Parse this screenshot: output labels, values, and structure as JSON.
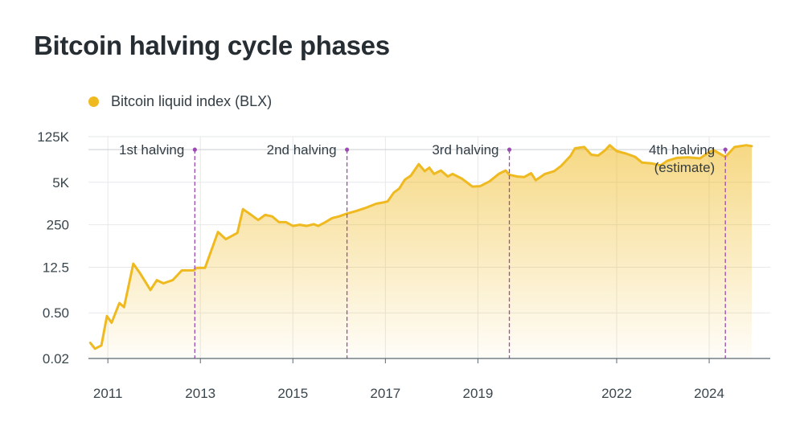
{
  "colors": {
    "series": "#efb920",
    "halving_line": "#9b4ab3",
    "grid": "#e6e8ea",
    "axis": "#5a6770"
  },
  "chart_data": {
    "type": "area",
    "title": "Bitcoin halving cycle phases",
    "legend": {
      "label": "Bitcoin liquid index (BLX)",
      "placement": "top-left"
    },
    "xlabel": "",
    "ylabel": "",
    "y_scale": "log",
    "y_ticks": [
      {
        "value": 0.02,
        "label": "0.02"
      },
      {
        "value": 0.5,
        "label": "0.50"
      },
      {
        "value": 12.5,
        "label": "12.5"
      },
      {
        "value": 250,
        "label": "250"
      },
      {
        "value": 5000,
        "label": "5K"
      },
      {
        "value": 125000,
        "label": "125K"
      }
    ],
    "x_ticks": [
      {
        "value": 2011.0,
        "label": "2011"
      },
      {
        "value": 2013.0,
        "label": "2013"
      },
      {
        "value": 2015.0,
        "label": "2015"
      },
      {
        "value": 2017.0,
        "label": "2017"
      },
      {
        "value": 2019.0,
        "label": "2019"
      },
      {
        "value": 2022.0,
        "label": "2022"
      },
      {
        "value": 2024.0,
        "label": "2024"
      }
    ],
    "x_range": [
      2010.58,
      2025.32
    ],
    "y_range": [
      0.02,
      125000
    ],
    "halving_level": 50000,
    "halvings": [
      {
        "label": "1st halving",
        "x": 2012.88
      },
      {
        "label": "2nd halving",
        "x": 2016.17
      },
      {
        "label": "3rd halving",
        "x": 2019.68
      },
      {
        "label": "4th halving\n(estimate)",
        "x": 2024.35
      }
    ],
    "series": [
      {
        "name": "Bitcoin liquid index (BLX)",
        "points": [
          [
            2010.62,
            0.06
          ],
          [
            2010.72,
            0.04
          ],
          [
            2010.86,
            0.05
          ],
          [
            2010.98,
            0.4
          ],
          [
            2011.08,
            0.25
          ],
          [
            2011.25,
            1.0
          ],
          [
            2011.35,
            0.75
          ],
          [
            2011.55,
            16
          ],
          [
            2011.7,
            8
          ],
          [
            2011.92,
            2.5
          ],
          [
            2012.06,
            5
          ],
          [
            2012.2,
            4
          ],
          [
            2012.4,
            5
          ],
          [
            2012.6,
            10
          ],
          [
            2012.85,
            10
          ],
          [
            2012.92,
            12
          ],
          [
            2013.1,
            12
          ],
          [
            2013.28,
            60
          ],
          [
            2013.38,
            150
          ],
          [
            2013.55,
            90
          ],
          [
            2013.8,
            140
          ],
          [
            2013.92,
            750
          ],
          [
            2014.1,
            500
          ],
          [
            2014.25,
            350
          ],
          [
            2014.4,
            500
          ],
          [
            2014.55,
            450
          ],
          [
            2014.7,
            300
          ],
          [
            2014.85,
            300
          ],
          [
            2015.0,
            230
          ],
          [
            2015.15,
            250
          ],
          [
            2015.3,
            230
          ],
          [
            2015.45,
            260
          ],
          [
            2015.55,
            230
          ],
          [
            2015.7,
            300
          ],
          [
            2015.85,
            400
          ],
          [
            2016.0,
            450
          ],
          [
            2016.17,
            550
          ],
          [
            2016.35,
            650
          ],
          [
            2016.55,
            800
          ],
          [
            2016.8,
            1100
          ],
          [
            2016.95,
            1200
          ],
          [
            2017.05,
            1300
          ],
          [
            2017.18,
            2400
          ],
          [
            2017.3,
            3200
          ],
          [
            2017.42,
            6000
          ],
          [
            2017.55,
            8000
          ],
          [
            2017.72,
            18000
          ],
          [
            2017.85,
            11000
          ],
          [
            2017.95,
            14000
          ],
          [
            2018.05,
            9000
          ],
          [
            2018.2,
            11500
          ],
          [
            2018.35,
            7500
          ],
          [
            2018.45,
            9000
          ],
          [
            2018.65,
            6500
          ],
          [
            2018.88,
            3700
          ],
          [
            2019.05,
            3800
          ],
          [
            2019.25,
            5300
          ],
          [
            2019.45,
            9000
          ],
          [
            2019.6,
            11500
          ],
          [
            2019.68,
            8500
          ],
          [
            2019.85,
            7500
          ],
          [
            2020.0,
            7200
          ],
          [
            2020.15,
            9500
          ],
          [
            2020.25,
            5800
          ],
          [
            2020.45,
            9000
          ],
          [
            2020.65,
            11000
          ],
          [
            2020.8,
            16000
          ],
          [
            2021.0,
            32000
          ],
          [
            2021.1,
            55000
          ],
          [
            2021.3,
            60000
          ],
          [
            2021.45,
            35000
          ],
          [
            2021.6,
            33000
          ],
          [
            2021.75,
            48000
          ],
          [
            2021.85,
            68000
          ],
          [
            2022.0,
            45000
          ],
          [
            2022.2,
            38000
          ],
          [
            2022.4,
            30000
          ],
          [
            2022.55,
            20000
          ],
          [
            2022.75,
            19000
          ],
          [
            2022.95,
            16500
          ],
          [
            2023.1,
            23000
          ],
          [
            2023.3,
            28000
          ],
          [
            2023.55,
            29000
          ],
          [
            2023.8,
            27000
          ],
          [
            2024.0,
            42000
          ],
          [
            2024.1,
            48000
          ],
          [
            2024.35,
            30000
          ],
          [
            2024.55,
            60000
          ],
          [
            2024.8,
            68000
          ],
          [
            2024.92,
            64000
          ]
        ]
      }
    ]
  }
}
